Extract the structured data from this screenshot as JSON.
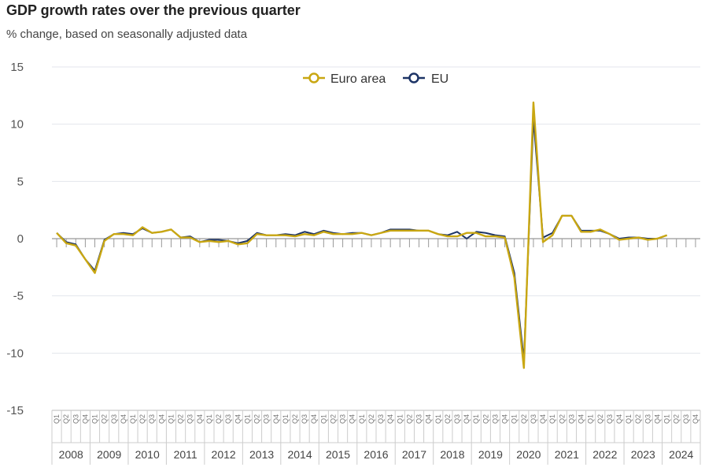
{
  "chart_data": {
    "type": "line",
    "title": "GDP growth rates over the previous quarter",
    "subtitle": "% change, based on seasonally adjusted data",
    "ylim": [
      -15,
      15
    ],
    "yticks": [
      "15",
      "10",
      "5",
      "0",
      "-5",
      "-10",
      "-15"
    ],
    "grid": true,
    "legend_position": "top-center",
    "quarter_labels": [
      "Q1",
      "Q2",
      "Q3",
      "Q4"
    ],
    "years": [
      "2008",
      "2009",
      "2010",
      "2011",
      "2012",
      "2013",
      "2014",
      "2015",
      "2016",
      "2017",
      "2018",
      "2019",
      "2020",
      "2021",
      "2022",
      "2023",
      "2024"
    ],
    "series": [
      {
        "name": "Euro area",
        "color": "#c9a712",
        "values": [
          0.5,
          -0.4,
          -0.6,
          -1.8,
          -3.0,
          -0.2,
          0.4,
          0.4,
          0.3,
          1.0,
          0.5,
          0.6,
          0.8,
          0.1,
          0.1,
          -0.3,
          -0.2,
          -0.3,
          -0.2,
          -0.5,
          -0.4,
          0.4,
          0.3,
          0.3,
          0.3,
          0.2,
          0.4,
          0.3,
          0.6,
          0.4,
          0.4,
          0.4,
          0.5,
          0.3,
          0.5,
          0.7,
          0.7,
          0.7,
          0.7,
          0.7,
          0.4,
          0.2,
          0.2,
          0.5,
          0.5,
          0.2,
          0.2,
          0.1,
          -3.4,
          -11.3,
          11.9,
          -0.3,
          0.3,
          2.0,
          2.0,
          0.6,
          0.6,
          0.8,
          0.4,
          -0.1,
          0.0,
          0.1,
          -0.1,
          0.0,
          0.3
        ]
      },
      {
        "name": "EU",
        "color": "#1d3466",
        "values": [
          0.5,
          -0.3,
          -0.5,
          -1.8,
          -2.8,
          -0.1,
          0.4,
          0.5,
          0.4,
          0.9,
          0.5,
          0.6,
          0.8,
          0.1,
          0.2,
          -0.3,
          -0.1,
          -0.1,
          -0.2,
          -0.4,
          -0.2,
          0.5,
          0.3,
          0.3,
          0.4,
          0.3,
          0.6,
          0.4,
          0.7,
          0.5,
          0.4,
          0.5,
          0.5,
          0.3,
          0.5,
          0.8,
          0.8,
          0.8,
          0.7,
          0.7,
          0.4,
          0.3,
          0.6,
          0.0,
          0.6,
          0.5,
          0.3,
          0.2,
          -3.0,
          -10.6,
          10.5,
          0.1,
          0.5,
          2.0,
          2.0,
          0.7,
          0.7,
          0.7,
          0.4,
          0.0,
          0.1,
          0.1,
          0.0,
          0.0,
          0.3
        ]
      }
    ]
  }
}
